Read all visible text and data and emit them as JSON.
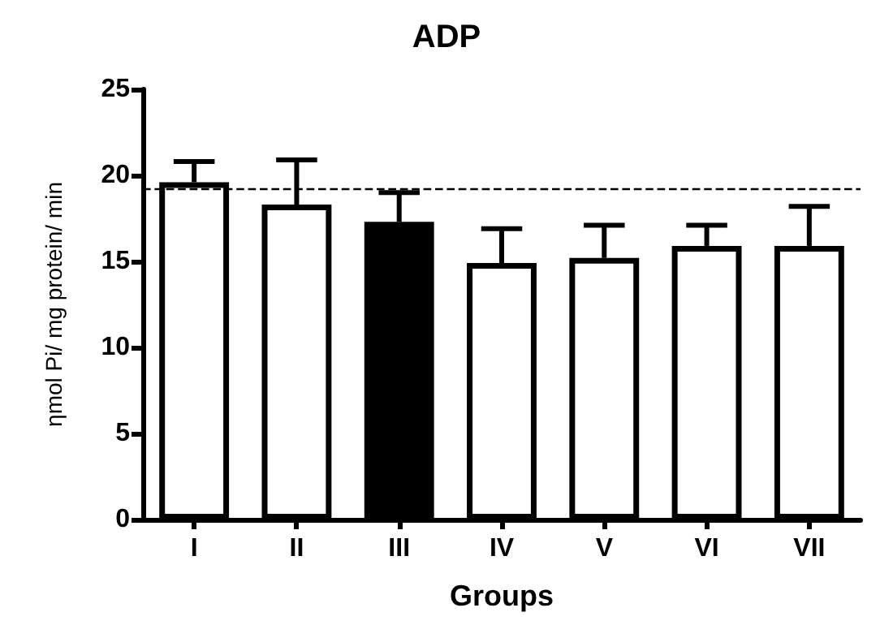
{
  "chart_data": {
    "type": "bar",
    "title": "ADP",
    "xlabel": "Groups",
    "ylabel": "ηmol Pi/ mg protein/ min",
    "categories": [
      "I",
      "II",
      "III",
      "IV",
      "V",
      "VI",
      "VII"
    ],
    "values": [
      19.6,
      18.3,
      17.3,
      14.9,
      15.2,
      15.9,
      15.9
    ],
    "colors": [
      "#ffffff",
      "#ffffff",
      "#000000",
      "#ffffff",
      "#ffffff",
      "#ffffff",
      "#ffffff"
    ],
    "errors": [
      [
        19.6,
        20.8
      ],
      [
        18.3,
        20.9
      ],
      [
        17.3,
        19.0
      ],
      [
        14.9,
        16.9
      ],
      [
        15.2,
        17.1
      ],
      [
        15.9,
        17.1
      ],
      [
        15.9,
        18.2
      ]
    ],
    "ylim": [
      0,
      25
    ],
    "yticks": [
      0,
      5,
      10,
      15,
      20,
      25
    ],
    "ref_lines": [
      {
        "axis": "y",
        "value": 19.25,
        "color": "#000000",
        "line_style": "dashed"
      }
    ],
    "grid": false
  }
}
